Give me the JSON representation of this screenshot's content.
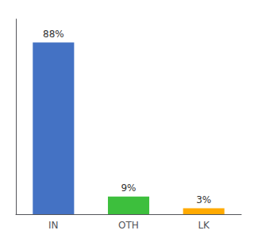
{
  "chart_data": {
    "type": "bar",
    "categories": [
      "IN",
      "OTH",
      "LK"
    ],
    "values": [
      88,
      9,
      3
    ],
    "value_labels": [
      "88%",
      "9%",
      "3%"
    ],
    "colors": [
      "#4472c4",
      "#3dbf3d",
      "#ffaa00"
    ],
    "ylim": [
      0,
      100
    ],
    "data_labels": true,
    "tick_labels": "x",
    "grid": false
  }
}
